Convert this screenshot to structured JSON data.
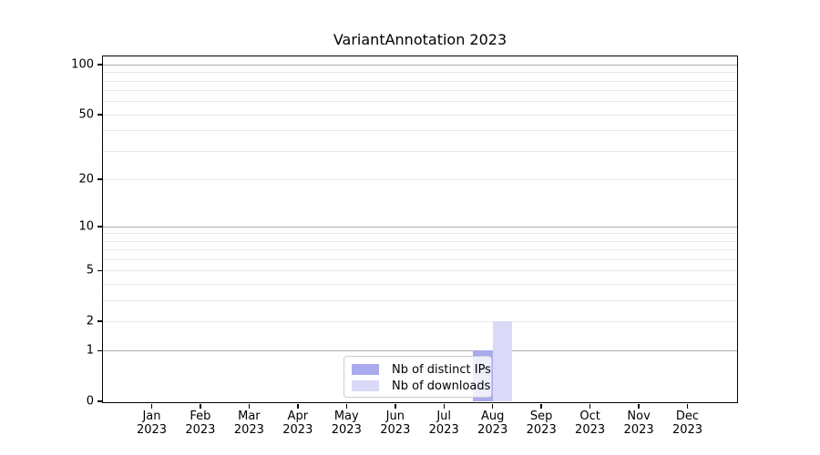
{
  "chart_data": {
    "type": "bar",
    "title": "VariantAnnotation 2023",
    "categories": [
      "Jan",
      "Feb",
      "Mar",
      "Apr",
      "May",
      "Jun",
      "Jul",
      "Aug",
      "Sep",
      "Oct",
      "Nov",
      "Dec"
    ],
    "year": "2023",
    "series": [
      {
        "name": "Nb of distinct IPs",
        "color": "#aaaaee",
        "values": [
          0,
          0,
          0,
          0,
          0,
          0,
          0,
          1,
          0,
          0,
          0,
          0
        ]
      },
      {
        "name": "Nb of downloads",
        "color": "#dadaf8",
        "values": [
          0,
          0,
          0,
          0,
          0,
          0,
          0,
          2,
          0,
          0,
          0,
          0
        ]
      }
    ],
    "xlabel": "",
    "ylabel": "",
    "scale": "log1p",
    "ylim": [
      0,
      112
    ],
    "yticks": [
      0,
      1,
      2,
      5,
      10,
      20,
      50,
      100
    ],
    "grid": {
      "major": [
        1,
        10,
        100
      ],
      "minor": [
        2,
        3,
        4,
        5,
        6,
        7,
        8,
        9,
        20,
        30,
        40,
        50,
        60,
        70,
        80,
        90
      ],
      "major_color": "#b0b0b0",
      "minor_color": "#e8e8e8"
    },
    "legend_position": "bottom-center",
    "axis_color": "#000000",
    "legend_border_color": "#cccccc"
  }
}
